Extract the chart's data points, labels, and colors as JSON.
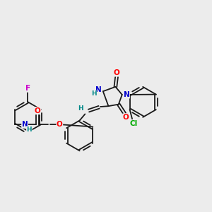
{
  "background_color": "#ececec",
  "bond_color": "#1a1a1a",
  "atom_colors": {
    "O": "#ff0000",
    "N": "#0000cc",
    "F": "#cc00cc",
    "Cl": "#00aa00",
    "H": "#008888",
    "C": "#1a1a1a"
  },
  "figsize": [
    3.0,
    3.0
  ],
  "dpi": 100,
  "bond_lw": 1.3
}
